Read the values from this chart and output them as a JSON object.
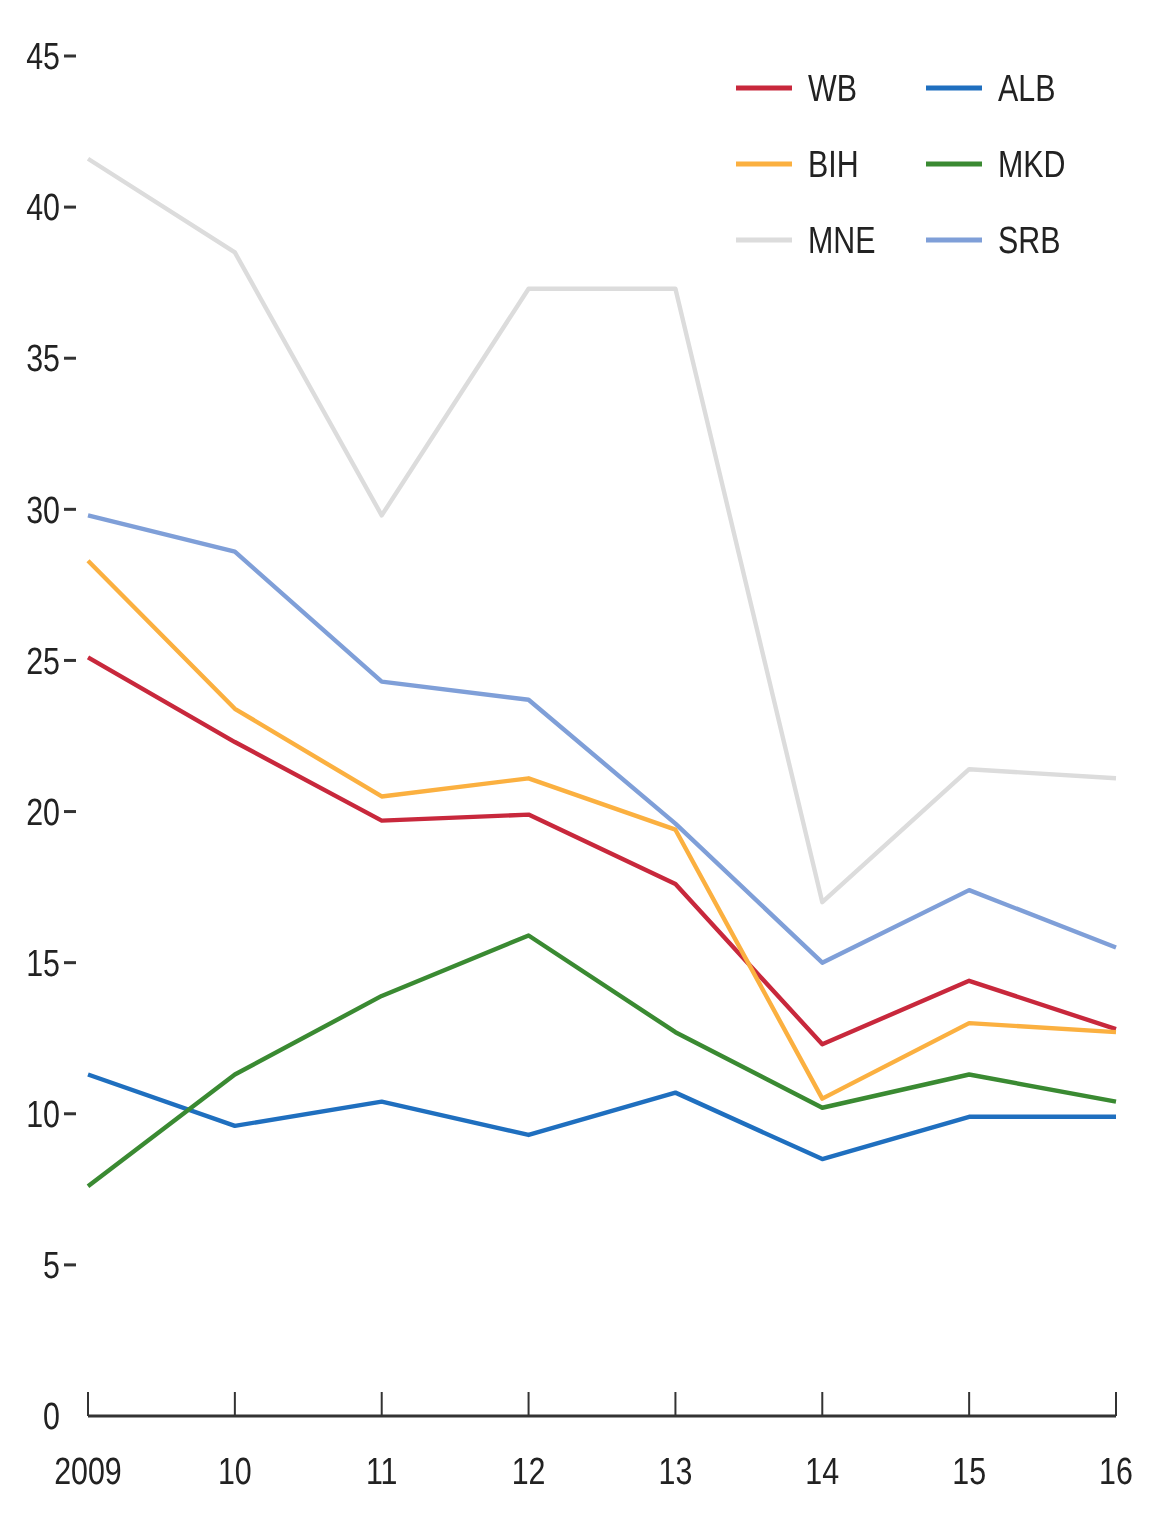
{
  "chart_data": {
    "type": "line",
    "x": [
      2009,
      2010,
      2011,
      2012,
      2013,
      2014,
      2015,
      2016
    ],
    "xlim": [
      2009,
      2016
    ],
    "xticks": [
      {
        "value": 2009,
        "label": "2009"
      },
      {
        "value": 2010,
        "label": "10"
      },
      {
        "value": 2011,
        "label": "11"
      },
      {
        "value": 2012,
        "label": "12"
      },
      {
        "value": 2013,
        "label": "13"
      },
      {
        "value": 2014,
        "label": "14"
      },
      {
        "value": 2015,
        "label": "15"
      },
      {
        "value": 2016,
        "label": "16"
      }
    ],
    "ylim": [
      0,
      45
    ],
    "yticks": [
      0,
      5,
      10,
      15,
      20,
      25,
      30,
      35,
      40,
      45
    ],
    "legend": "top right",
    "grid": false,
    "series": [
      {
        "name": "WB",
        "color": "#c8283c",
        "values": [
          25.1,
          22.3,
          19.7,
          19.9,
          17.6,
          12.3,
          14.4,
          12.8
        ]
      },
      {
        "name": "ALB",
        "color": "#1f6fbf",
        "values": [
          11.3,
          9.6,
          10.4,
          9.3,
          10.7,
          8.5,
          9.9,
          9.9
        ]
      },
      {
        "name": "BIH",
        "color": "#fbb040",
        "values": [
          28.3,
          23.4,
          20.5,
          21.1,
          19.4,
          10.5,
          13.0,
          12.7
        ]
      },
      {
        "name": "MKD",
        "color": "#3a8a32",
        "values": [
          7.6,
          11.3,
          13.9,
          15.9,
          12.7,
          10.2,
          11.3,
          10.4
        ]
      },
      {
        "name": "MNE",
        "color": "#dcdcdc",
        "values": [
          41.6,
          38.5,
          29.8,
          37.3,
          37.3,
          17.0,
          21.4,
          21.1
        ]
      },
      {
        "name": "SRB",
        "color": "#7f9fd8",
        "values": [
          29.8,
          28.6,
          24.3,
          23.7,
          19.6,
          15.0,
          17.4,
          15.5
        ]
      }
    ]
  }
}
